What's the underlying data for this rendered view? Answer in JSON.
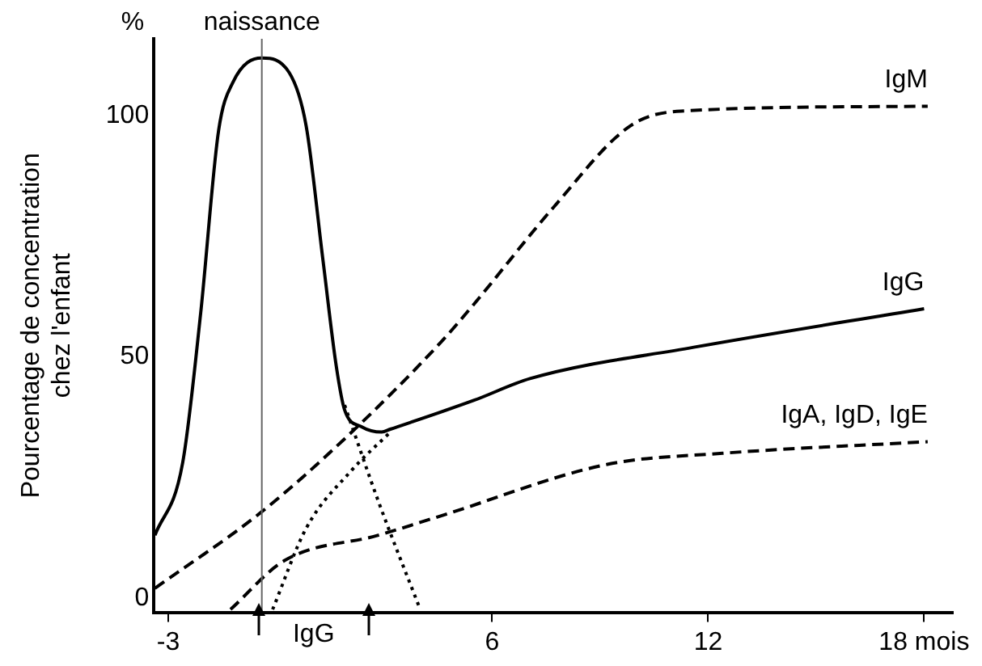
{
  "chart_data": {
    "type": "line",
    "ylabel": "Pourcentage de concentration\nchez l'enfant",
    "xlim": [
      -3.4,
      18.8
    ],
    "ylim": [
      -3,
      116
    ],
    "xticks": [
      -3,
      6,
      12,
      {
        "value": 18,
        "label": "18 mois"
      }
    ],
    "yticks": [
      0,
      50,
      100
    ],
    "grid": false,
    "legend": false,
    "marker": "none",
    "series": [
      {
        "name": "IgM",
        "color": "#000000",
        "line_style": "dashed",
        "x": [
          -3.37,
          -0.43,
          1.9,
          4.57,
          5.5,
          7.7,
          9.85,
          11.25,
          18.1
        ],
        "values": [
          2,
          17.7,
          33,
          53,
          61,
          81,
          98,
          101,
          102
        ]
      },
      {
        "name": "IgG",
        "color": "#000000",
        "line_style": "solid",
        "x": [
          -3.37,
          -2.6,
          -2.1,
          -1.6,
          -1.2,
          -0.4,
          0.36,
          0.83,
          1.3,
          1.67,
          1.9,
          2.37,
          2.93,
          3.17,
          5.5,
          7.05,
          11.6,
          18
        ],
        "values": [
          13,
          28,
          59,
          97,
          107,
          112,
          109,
          98,
          70,
          48,
          39,
          35.5,
          34.4,
          35,
          41,
          45.5,
          52,
          60
        ]
      },
      {
        "name": "IgA, IgD, IgE",
        "color": "#000000",
        "line_style": "dashed",
        "x": [
          -1.27,
          0.22,
          2.84,
          4.57,
          9.2,
          12.4,
          18.1
        ],
        "values": [
          -2.4,
          7.7,
          13,
          17,
          27.7,
          30,
          32.4
        ]
      },
      {
        "color": "#000000",
        "line_style": "dotted",
        "x": [
          1.9,
          2.84,
          4.0
        ],
        "values": [
          40,
          20,
          -2.4
        ]
      },
      {
        "color": "#000000",
        "line_style": "dotted",
        "x": [
          -0.1,
          0.83,
          2.1,
          3.17
        ],
        "values": [
          -2.4,
          14.4,
          26.5,
          34.4
        ]
      }
    ],
    "ref_lines": [
      {
        "axis": "x",
        "value": -0.4,
        "label": "naissance",
        "color": "#666666"
      }
    ],
    "annotations": [
      "%",
      "IgG"
    ]
  }
}
